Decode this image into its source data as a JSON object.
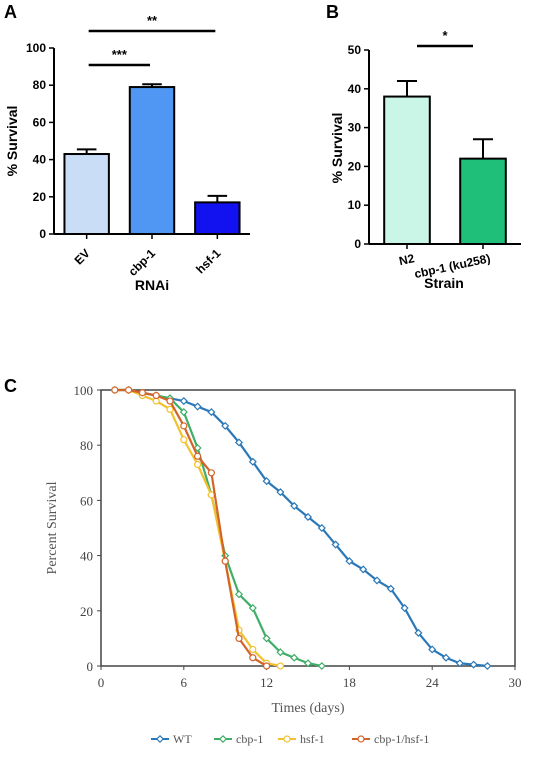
{
  "chart_data": [
    {
      "panel": "A",
      "type": "bar",
      "title": "",
      "xlabel": "RNAi",
      "ylabel": "% Survival",
      "ylim": [
        0,
        100
      ],
      "yticks": [
        0,
        20,
        40,
        60,
        80,
        100
      ],
      "categories": [
        "EV",
        "cbp-1",
        "hsf-1"
      ],
      "values": [
        43,
        79,
        17
      ],
      "errors": [
        2.5,
        1.5,
        3.5
      ],
      "colors": [
        "#c9ddf6",
        "#4f97f2",
        "#1212f0"
      ],
      "significance": [
        {
          "from": "EV",
          "to": "cbp-1",
          "label": "***"
        },
        {
          "from": "EV",
          "to": "hsf-1",
          "label": "**"
        }
      ]
    },
    {
      "panel": "B",
      "type": "bar",
      "title": "",
      "xlabel": "Strain",
      "ylabel": "% Survival",
      "ylim": [
        0,
        50
      ],
      "yticks": [
        0,
        10,
        20,
        30,
        40,
        50
      ],
      "categories": [
        "N2",
        "cbp-1 (ku258)"
      ],
      "values": [
        38,
        22
      ],
      "errors": [
        4,
        5
      ],
      "colors": [
        "#c9f6e6",
        "#1fbf7a"
      ],
      "significance": [
        {
          "from": "N2",
          "to": "cbp-1 (ku258)",
          "label": "*"
        }
      ]
    },
    {
      "panel": "C",
      "type": "line",
      "title": "",
      "xlabel": "Times (days)",
      "ylabel": "Percent Survival",
      "xlim": [
        0,
        30
      ],
      "ylim": [
        0,
        100
      ],
      "xticks": [
        0,
        6,
        12,
        18,
        24,
        30
      ],
      "yticks": [
        0,
        20,
        40,
        60,
        80,
        100
      ],
      "legend_position": "bottom",
      "series": [
        {
          "name": "WT",
          "color": "#2a78b8",
          "x": [
            1,
            2,
            3,
            4,
            5,
            6,
            7,
            8,
            9,
            10,
            11,
            12,
            13,
            14,
            15,
            16,
            17,
            18,
            19,
            20,
            21,
            22,
            23,
            24,
            25,
            26,
            27,
            28
          ],
          "y": [
            100,
            100,
            99,
            98,
            97,
            96,
            94,
            92,
            87,
            81,
            74,
            67,
            63,
            58,
            54,
            50,
            44,
            38,
            35,
            31,
            28,
            21,
            12,
            6,
            3,
            1,
            0.5,
            0
          ]
        },
        {
          "name": "cbp-1",
          "color": "#3fae67",
          "x": [
            1,
            2,
            3,
            4,
            5,
            6,
            7,
            8,
            9,
            10,
            11,
            12,
            13,
            14,
            15,
            16
          ],
          "y": [
            100,
            100,
            99,
            98,
            97,
            92,
            79,
            62,
            40,
            26,
            21,
            10,
            5,
            3,
            1,
            0
          ]
        },
        {
          "name": "hsf-1",
          "color": "#f2c12e",
          "x": [
            1,
            2,
            3,
            4,
            5,
            6,
            7,
            8,
            9,
            10,
            11,
            12,
            13
          ],
          "y": [
            100,
            100,
            98,
            96,
            93,
            82,
            73,
            62,
            38,
            13,
            6,
            1,
            0
          ]
        },
        {
          "name": "cbp-1/hsf-1",
          "color": "#d4632a",
          "x": [
            1,
            2,
            3,
            4,
            5,
            6,
            7,
            8,
            9,
            10,
            11,
            12
          ],
          "y": [
            100,
            100,
            99,
            98,
            96,
            87,
            76,
            70,
            38,
            10,
            3,
            0
          ]
        }
      ]
    }
  ],
  "panels": {
    "a": "A",
    "b": "B",
    "c": "C"
  }
}
